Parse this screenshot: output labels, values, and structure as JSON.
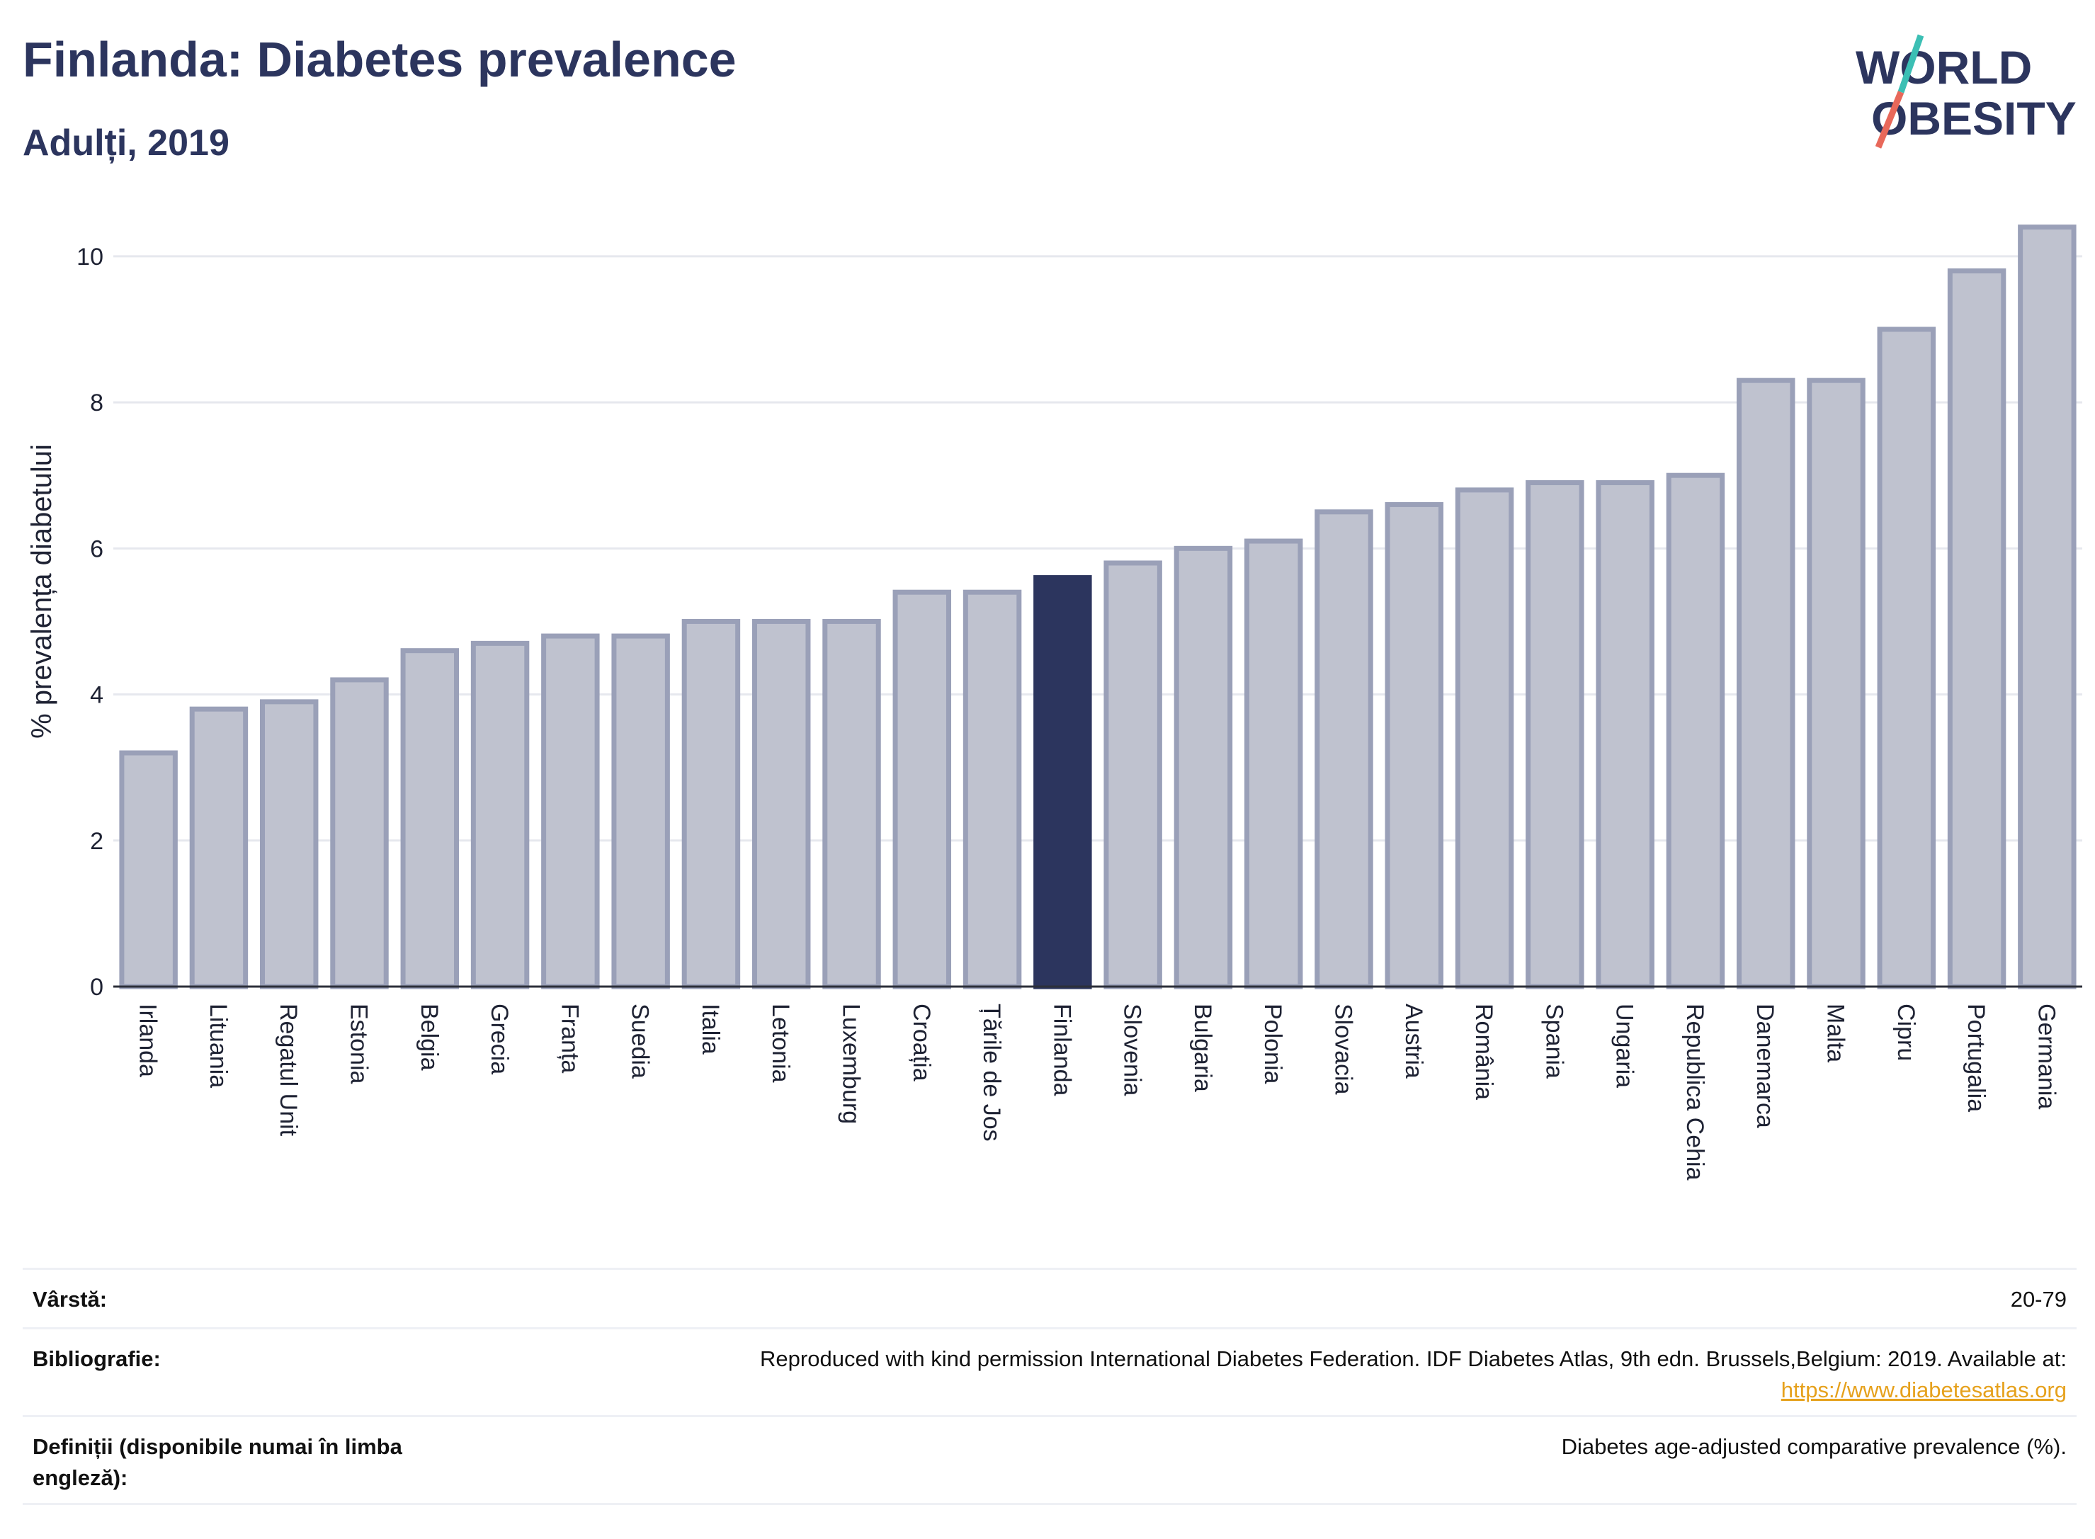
{
  "header": {
    "title": "Finlanda: Diabetes prevalence",
    "subtitle": "Adulți, 2019"
  },
  "logo": {
    "line1": "WORLD",
    "line2": "OBESITY",
    "accent_teal": "#3cbfb4",
    "accent_coral": "#e8685a"
  },
  "colors": {
    "bar": "#bfc2cf",
    "bar_border": "#9aa0b8",
    "highlight": "#2c355e",
    "grid": "#e6e8ee"
  },
  "chart_data": {
    "type": "bar",
    "title": "Finlanda: Diabetes prevalence",
    "subtitle": "Adulți, 2019",
    "ylabel": "% prevalența diabetului",
    "xlabel": "",
    "ylim": [
      0,
      10.6
    ],
    "yticks": [
      0,
      2,
      4,
      6,
      8,
      10
    ],
    "grid": true,
    "highlight_category": "Finlanda",
    "categories": [
      "Irlanda",
      "Lituania",
      "Regatul Unit",
      "Estonia",
      "Belgia",
      "Grecia",
      "Franța",
      "Suedia",
      "Italia",
      "Letonia",
      "Luxemburg",
      "Croația",
      "Țările de Jos",
      "Finlanda",
      "Slovenia",
      "Bulgaria",
      "Polonia",
      "Slovacia",
      "Austria",
      "România",
      "Spania",
      "Ungaria",
      "Republica Cehia",
      "Danemarca",
      "Malta",
      "Cipru",
      "Portugalia",
      "Germania"
    ],
    "values": [
      3.2,
      3.8,
      3.9,
      4.2,
      4.6,
      4.7,
      4.8,
      4.8,
      5.0,
      5.0,
      5.0,
      5.4,
      5.4,
      5.6,
      5.8,
      6.0,
      6.1,
      6.5,
      6.6,
      6.8,
      6.9,
      6.9,
      7.0,
      8.3,
      8.3,
      9.0,
      9.8,
      10.4
    ]
  },
  "meta": {
    "age_label": "Vârstă:",
    "age_value": "20-79",
    "biblio_label": "Bibliografie:",
    "biblio_text": "Reproduced with kind permission International Diabetes Federation. IDF Diabetes Atlas, 9th edn. Brussels,Belgium: 2019. Available at:",
    "biblio_link": "https://www.diabetesatlas.org",
    "def_label": "Definiții (disponibile numai în limba engleză):",
    "def_value": "Diabetes age-adjusted comparative prevalence (%)."
  }
}
